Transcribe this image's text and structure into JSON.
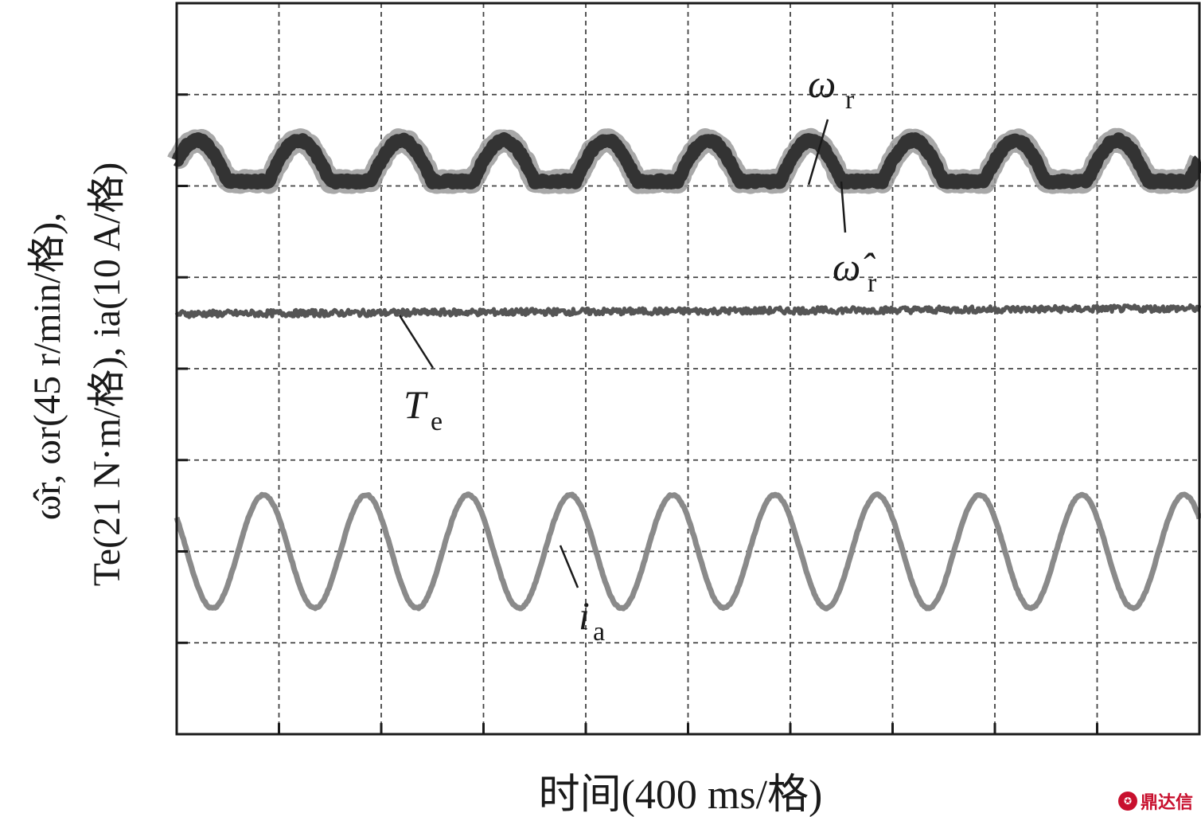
{
  "chart_data": {
    "type": "line",
    "xlabel": "时间(400 ms/格)",
    "ylabel_line1": "ω̂r, ωr(45 r/min/格),",
    "ylabel_line2": "Te(21 N·m/格), ia(10 A/格)",
    "x_divisions": 10,
    "y_divisions": 8,
    "x_unit_per_div_ms": 400,
    "xlim": [
      0,
      4000
    ],
    "ylim_div": [
      0,
      8
    ],
    "grid": true,
    "series": [
      {
        "name": "ωr",
        "label_main": "ω",
        "label_sub": "r",
        "color": "#333333",
        "baseline_div": 6.05,
        "ripple_amp_div": 0.45,
        "ripple_period_ms": 400,
        "band_width_div": 0.12
      },
      {
        "name": "ω̂r",
        "label_main": "ω̂",
        "label_sub": "r",
        "color": "#999999",
        "baseline_div": 6.05,
        "ripple_amp_div": 0.45,
        "ripple_period_ms": 400
      },
      {
        "name": "Te",
        "label_main": "T",
        "label_sub": "e",
        "color": "#555555",
        "level_div": 4.6,
        "noise_amp_div": 0.06
      },
      {
        "name": "ia",
        "label_main": "i",
        "label_sub": "a",
        "color": "#8a8a8a",
        "center_div": 2.0,
        "amplitude_div": 0.62,
        "period_ms": 400,
        "phase_ms": 0
      }
    ]
  },
  "watermark": {
    "text": "鼎达信",
    "icon": "logo-icon"
  }
}
